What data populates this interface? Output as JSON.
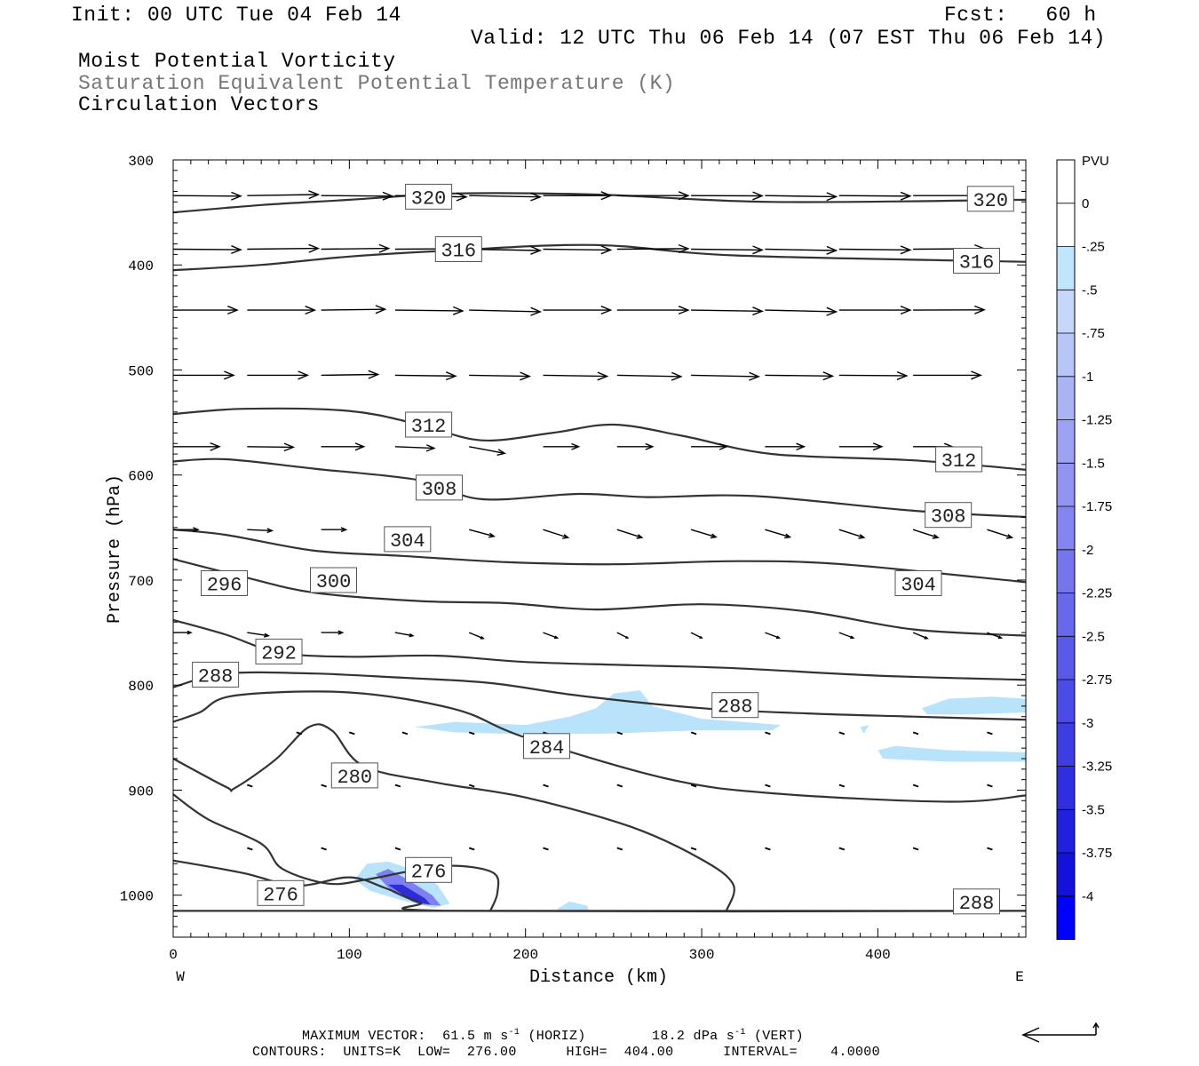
{
  "header": {
    "init": "Init: 00 UTC Tue 04 Feb 14",
    "fcst": "Fcst:   60 h",
    "valid": "Valid: 12 UTC Thu 06 Feb 14 (07 EST Thu 06 Feb 14)",
    "field1": "Moist Potential Vorticity",
    "field2": "Saturation Equivalent Potential Temperature (K)",
    "field3": "Circulation Vectors"
  },
  "footer": {
    "max_vector_prefix": "MAXIMUM VECTOR:  61.5 m s",
    "max_vector_horiz": "(HORIZ)",
    "max_vector_vert_prefix": "18.2 dPa s",
    "max_vector_vert": "(VERT)",
    "exponent": "-1",
    "contours": "CONTOURS:  UNITS=K  LOW=  276.00      HIGH=  404.00      INTERVAL=    4.0000"
  },
  "colors": {
    "shade_light": "#b9e3fb",
    "shade_mid": "#7f7ff0",
    "shade_dark": "#2d2dd8",
    "contour": "#333333"
  },
  "chart_data": {
    "type": "cross-section",
    "xlabel": "Distance (km)",
    "ylabel": "Pressure (hPa)",
    "xlim": [
      0,
      484
    ],
    "ylim": [
      1040,
      300
    ],
    "x_ticks": [
      0,
      100,
      200,
      300,
      400
    ],
    "y_ticks": [
      300,
      400,
      500,
      600,
      700,
      800,
      900,
      1000
    ],
    "x_end_labels": {
      "left": "W",
      "right": "E"
    },
    "colorbar": {
      "title": "PVU",
      "levels": [
        "0",
        "-.25",
        "-.5",
        "-.75",
        "-1",
        "-1.25",
        "-1.5",
        "-1.75",
        "-2",
        "-2.25",
        "-2.5",
        "-2.75",
        "-3",
        "-3.25",
        "-3.5",
        "-3.75",
        "-4"
      ],
      "colors": [
        "#ffffff",
        "#ffffff",
        "#bfe6fb",
        "#c5d6f9",
        "#b8c6f7",
        "#aab4f5",
        "#9ea2f3",
        "#9394f1",
        "#8585ef",
        "#7676ec",
        "#6868ea",
        "#5959e7",
        "#4b4be5",
        "#3d3de2",
        "#2f2fe0",
        "#2020dd",
        "#1212db",
        "#0000ff"
      ]
    },
    "contours": [
      {
        "label": "320",
        "points": [
          [
            0,
            350
          ],
          [
            50,
            343
          ],
          [
            100,
            338
          ],
          [
            160,
            332
          ],
          [
            240,
            333
          ],
          [
            340,
            340
          ],
          [
            484,
            338
          ]
        ]
      },
      {
        "label": "316",
        "points": [
          [
            0,
            405
          ],
          [
            50,
            400
          ],
          [
            100,
            392
          ],
          [
            160,
            386
          ],
          [
            240,
            381
          ],
          [
            320,
            391
          ],
          [
            484,
            397
          ]
        ]
      },
      {
        "label": "312",
        "points": [
          [
            0,
            542
          ],
          [
            40,
            537
          ],
          [
            100,
            539
          ],
          [
            140,
            552
          ],
          [
            175,
            567
          ],
          [
            215,
            560
          ],
          [
            250,
            552
          ],
          [
            290,
            563
          ],
          [
            340,
            580
          ],
          [
            420,
            586
          ],
          [
            484,
            595
          ]
        ]
      },
      {
        "label": "308",
        "points": [
          [
            0,
            587
          ],
          [
            30,
            585
          ],
          [
            80,
            594
          ],
          [
            140,
            605
          ],
          [
            175,
            623
          ],
          [
            230,
            618
          ],
          [
            270,
            621
          ],
          [
            330,
            620
          ],
          [
            420,
            634
          ],
          [
            484,
            640
          ]
        ]
      },
      {
        "label": "304",
        "points": [
          [
            0,
            652
          ],
          [
            30,
            657
          ],
          [
            80,
            672
          ],
          [
            130,
            677
          ],
          [
            190,
            683
          ],
          [
            250,
            685
          ],
          [
            320,
            682
          ],
          [
            380,
            685
          ],
          [
            484,
            702
          ]
        ]
      },
      {
        "label": "300",
        "points": [
          [
            0,
            680
          ],
          [
            40,
            697
          ],
          [
            80,
            712
          ],
          [
            140,
            720
          ],
          [
            190,
            722
          ],
          [
            240,
            728
          ],
          [
            300,
            723
          ],
          [
            360,
            730
          ],
          [
            420,
            747
          ],
          [
            484,
            753
          ]
        ]
      },
      {
        "label": "296",
        "points": [
          [
            0,
            738
          ],
          [
            30,
            752
          ],
          [
            60,
            769
          ],
          [
            100,
            773
          ],
          [
            150,
            772
          ],
          [
            200,
            778
          ],
          [
            260,
            781
          ],
          [
            320,
            784
          ],
          [
            400,
            791
          ],
          [
            484,
            795
          ]
        ]
      },
      {
        "label": "292",
        "points": [
          [
            0,
            802
          ],
          [
            30,
            789
          ],
          [
            80,
            789
          ],
          [
            130,
            793
          ],
          [
            180,
            798
          ],
          [
            230,
            810
          ],
          [
            300,
            822
          ],
          [
            360,
            827
          ],
          [
            420,
            830
          ],
          [
            484,
            833
          ]
        ]
      },
      {
        "label": "288",
        "points": [
          [
            0,
            835
          ],
          [
            15,
            826
          ],
          [
            35,
            810
          ],
          [
            100,
            807
          ],
          [
            160,
            823
          ],
          [
            200,
            850
          ],
          [
            280,
            889
          ],
          [
            340,
            903
          ],
          [
            440,
            911
          ],
          [
            484,
            905
          ]
        ]
      },
      {
        "label": "284",
        "points": [
          [
            0,
            870
          ],
          [
            30,
            897
          ],
          [
            35,
            898
          ],
          [
            58,
            871
          ],
          [
            77,
            840
          ],
          [
            90,
            843
          ],
          [
            108,
            877
          ],
          [
            150,
            893
          ],
          [
            200,
            907
          ],
          [
            260,
            935
          ],
          [
            300,
            966
          ],
          [
            318,
            990
          ],
          [
            314,
            1015
          ]
        ]
      },
      {
        "label": "280",
        "points": [
          [
            0,
            904
          ],
          [
            20,
            928
          ],
          [
            50,
            951
          ],
          [
            62,
            975
          ],
          [
            88,
            989
          ],
          [
            110,
            985
          ],
          [
            135,
            977
          ],
          [
            160,
            972
          ],
          [
            182,
            979
          ],
          [
            184,
            998
          ],
          [
            180,
            1015
          ]
        ]
      },
      {
        "label": "276",
        "points": [
          [
            0,
            967
          ],
          [
            40,
            979
          ],
          [
            70,
            991
          ],
          [
            100,
            983
          ],
          [
            120,
            993
          ],
          [
            140,
            1007
          ],
          [
            160,
            1015
          ],
          [
            484,
            1015
          ]
        ]
      },
      {
        "label": "288",
        "points": [
          [
            0,
            1015
          ],
          [
            484,
            1015
          ]
        ]
      }
    ],
    "contour_labels": [
      {
        "text": "320",
        "x": 145,
        "p": 335
      },
      {
        "text": "320",
        "x": 464,
        "p": 337
      },
      {
        "text": "316",
        "x": 162,
        "p": 385
      },
      {
        "text": "316",
        "x": 456,
        "p": 396
      },
      {
        "text": "312",
        "x": 145,
        "p": 552
      },
      {
        "text": "312",
        "x": 446,
        "p": 585
      },
      {
        "text": "308",
        "x": 151,
        "p": 612
      },
      {
        "text": "308",
        "x": 440,
        "p": 638
      },
      {
        "text": "304",
        "x": 133,
        "p": 661
      },
      {
        "text": "304",
        "x": 423,
        "p": 703
      },
      {
        "text": "300",
        "x": 91,
        "p": 700
      },
      {
        "text": "296",
        "x": 29,
        "p": 703
      },
      {
        "text": "292",
        "x": 60,
        "p": 768
      },
      {
        "text": "288",
        "x": 24,
        "p": 790
      },
      {
        "text": "288",
        "x": 319,
        "p": 819
      },
      {
        "text": "284",
        "x": 212,
        "p": 858
      },
      {
        "text": "280",
        "x": 103,
        "p": 886
      },
      {
        "text": "276",
        "x": 145,
        "p": 976
      },
      {
        "text": "276",
        "x": 61,
        "p": 998
      },
      {
        "text": "288",
        "x": 456,
        "p": 1006
      }
    ],
    "vector_rows": [
      {
        "p": 334,
        "xs": [
          0,
          42,
          84,
          126,
          168,
          210,
          252,
          294,
          336,
          378,
          420,
          462
        ],
        "lens": [
          38,
          40,
          40,
          40,
          40,
          38,
          40,
          40,
          40,
          40,
          42,
          40
        ],
        "dp": [
          2,
          -4,
          2,
          5,
          5,
          0,
          0,
          1,
          4,
          2,
          0,
          1
        ]
      },
      {
        "p": 385,
        "xs": [
          0,
          42,
          84,
          126,
          168,
          210,
          252,
          294,
          336,
          378,
          420,
          462
        ],
        "lens": [
          38,
          40,
          38,
          40,
          40,
          38,
          40,
          40,
          40,
          40,
          40,
          40
        ],
        "dp": [
          2,
          -3,
          -3,
          -2,
          5,
          3,
          -2,
          3,
          5,
          3,
          -2,
          0
        ]
      },
      {
        "p": 443,
        "xs": [
          0,
          42,
          84,
          126,
          168,
          210,
          252,
          294,
          336,
          378,
          420,
          462
        ],
        "lens": [
          36,
          38,
          36,
          38,
          40,
          38,
          40,
          40,
          40,
          40,
          40,
          40
        ],
        "dp": [
          0,
          0,
          -3,
          3,
          6,
          0,
          0,
          4,
          6,
          0,
          -1,
          0
        ]
      },
      {
        "p": 505,
        "xs": [
          0,
          42,
          84,
          126,
          168,
          210,
          252,
          294,
          336,
          378,
          420,
          462
        ],
        "lens": [
          34,
          34,
          32,
          34,
          34,
          36,
          36,
          38,
          38,
          38,
          38,
          38
        ],
        "dp": [
          0,
          0,
          -3,
          3,
          4,
          4,
          5,
          5,
          3,
          2,
          0,
          2
        ]
      },
      {
        "p": 573,
        "xs": [
          0,
          42,
          84,
          126,
          168,
          210,
          252,
          294,
          336,
          378,
          420,
          462
        ],
        "lens": [
          26,
          26,
          24,
          22,
          20,
          20,
          20,
          20,
          22,
          24,
          22,
          24
        ],
        "dp": [
          0,
          2,
          0,
          6,
          25,
          0,
          0,
          0,
          0,
          0,
          0,
          2
        ]
      },
      {
        "p": 652,
        "xs": [
          0,
          42,
          84,
          126,
          168,
          210,
          252,
          294,
          336,
          378,
          420,
          462
        ],
        "lens": [
          14,
          14,
          14,
          14,
          14,
          14,
          14,
          14,
          14,
          14,
          14,
          14
        ],
        "dp": [
          0,
          4,
          0,
          12,
          25,
          30,
          30,
          28,
          28,
          30,
          30,
          30
        ]
      },
      {
        "p": 750,
        "xs": [
          0,
          42,
          84,
          126,
          168,
          210,
          252,
          294,
          336,
          378,
          420,
          462
        ],
        "lens": [
          10,
          12,
          12,
          10,
          8,
          8,
          6,
          6,
          8,
          8,
          8,
          8
        ],
        "dp": [
          0,
          12,
          0,
          12,
          22,
          20,
          20,
          20,
          20,
          20,
          22,
          20
        ]
      }
    ],
    "pv_regions_pvu": [
      {
        "level": "-0.25 to -0.5",
        "approx": "800-860 hPa near 140-350 km, 820-830 hPa near 410-484 km, 860-870 hPa near 400-484 km"
      },
      {
        "level": "down to about -3",
        "approx": "970-1010 hPa near 100-155 km"
      }
    ]
  }
}
